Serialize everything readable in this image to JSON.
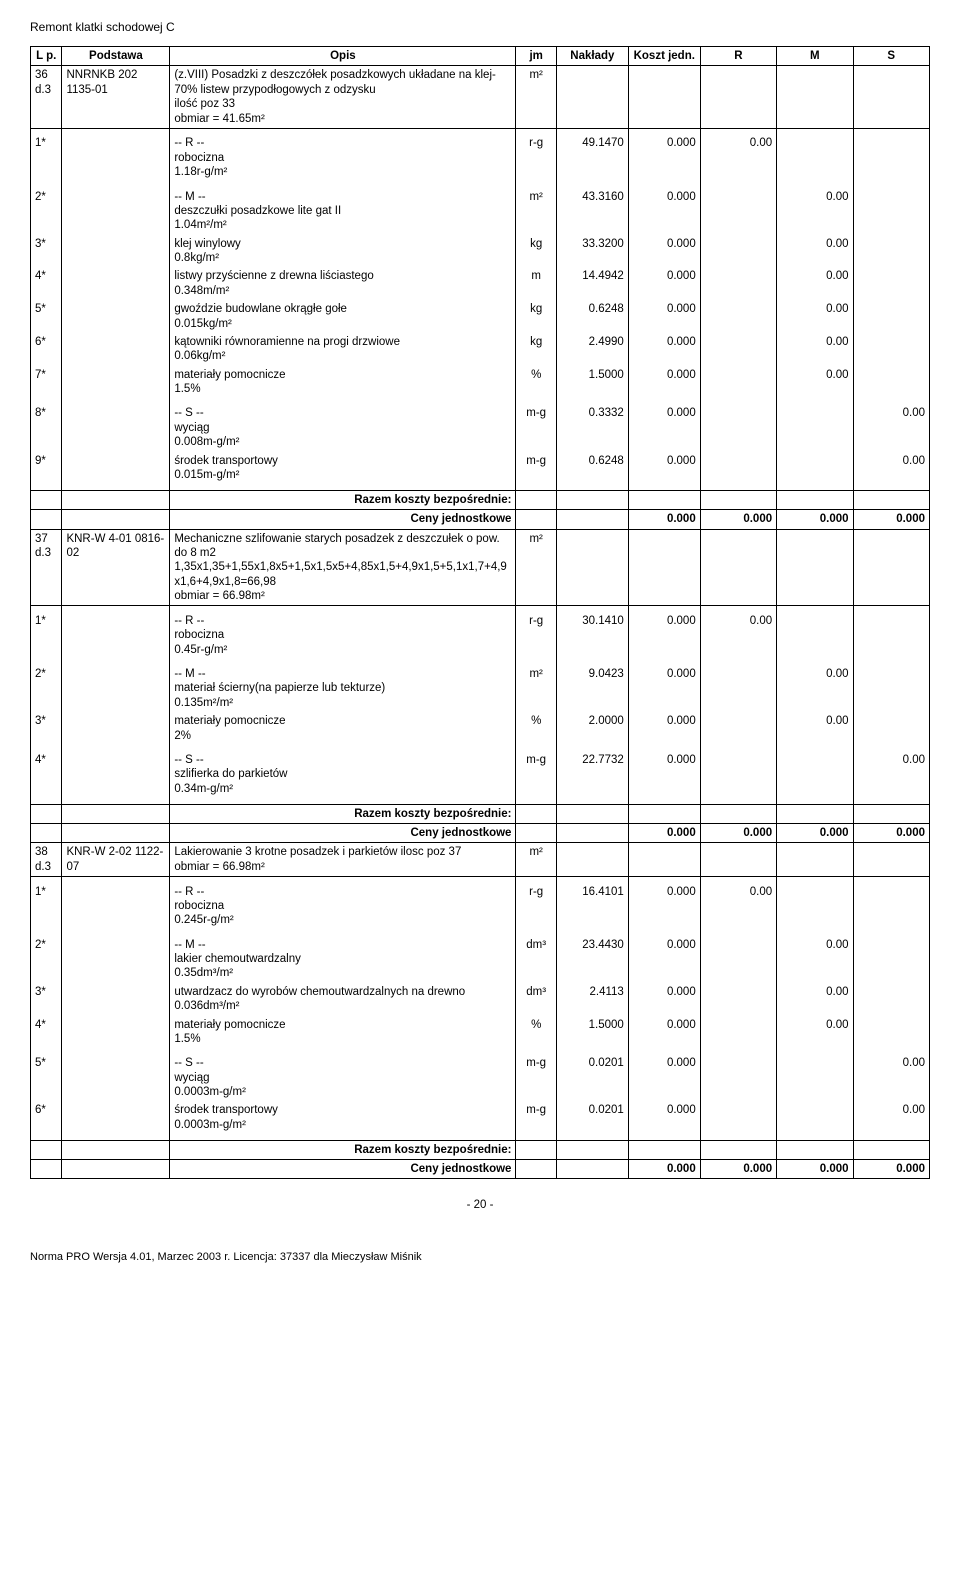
{
  "title": "Remont klatki schodowej C",
  "header": {
    "lp": "L p.",
    "podstawa": "Podstawa",
    "opis": "Opis",
    "jm": "jm",
    "naklady": "Nakłady",
    "koszt": "Koszt jedn.",
    "r": "R",
    "m": "M",
    "s": "S"
  },
  "labels": {
    "rhead": "-- R --",
    "mhead": "-- M --",
    "shead": "-- S --",
    "razem": "Razem koszty bezpośrednie:",
    "ceny": "Ceny jednostkowe"
  },
  "items": [
    {
      "lp": "36 d.3",
      "podstawa": "NNRNKB 202 1135-01",
      "opis": "(z.VIII) Posadzki z deszczółek posadzkowych układane na klej- 70% listew przypodłogowych z odzysku\nilość poz 33\nobmiar = 41.65m²",
      "jm": "m²",
      "r": [
        {
          "n": "1*",
          "opis": "robocizna",
          "sub": "1.18r-g/m²",
          "jm": "r-g",
          "nak": "49.1470",
          "koszt": "0.000",
          "r": "0.00"
        }
      ],
      "m": [
        {
          "n": "2*",
          "opis": "deszczułki posadzkowe lite gat II",
          "sub": "1.04m²/m²",
          "jm": "m²",
          "nak": "43.3160",
          "koszt": "0.000",
          "m": "0.00"
        },
        {
          "n": "3*",
          "opis": "klej winylowy",
          "sub": "0.8kg/m²",
          "jm": "kg",
          "nak": "33.3200",
          "koszt": "0.000",
          "m": "0.00"
        },
        {
          "n": "4*",
          "opis": "listwy przyścienne z drewna liściastego",
          "sub": "0.348m/m²",
          "jm": "m",
          "nak": "14.4942",
          "koszt": "0.000",
          "m": "0.00"
        },
        {
          "n": "5*",
          "opis": "gwoździe budowlane okrągłe gołe",
          "sub": "0.015kg/m²",
          "jm": "kg",
          "nak": "0.6248",
          "koszt": "0.000",
          "m": "0.00"
        },
        {
          "n": "6*",
          "opis": "kątowniki równoramienne na progi drzwiowe",
          "sub": "0.06kg/m²",
          "jm": "kg",
          "nak": "2.4990",
          "koszt": "0.000",
          "m": "0.00"
        },
        {
          "n": "7*",
          "opis": "materiały pomocnicze",
          "sub": "1.5%",
          "jm": "%",
          "nak": "1.5000",
          "koszt": "0.000",
          "m": "0.00"
        }
      ],
      "s": [
        {
          "n": "8*",
          "opis": "wyciąg",
          "sub": "0.008m-g/m²",
          "jm": "m-g",
          "nak": "0.3332",
          "koszt": "0.000",
          "s": "0.00"
        },
        {
          "n": "9*",
          "opis": "środek transportowy",
          "sub": "0.015m-g/m²",
          "jm": "m-g",
          "nak": "0.6248",
          "koszt": "0.000",
          "s": "0.00"
        }
      ],
      "ceny": {
        "koszt": "0.000",
        "r": "0.000",
        "m": "0.000",
        "s": "0.000"
      }
    },
    {
      "lp": "37 d.3",
      "podstawa": "KNR-W 4-01 0816-02",
      "opis": "Mechaniczne szlifowanie starych posadzek z deszczułek o pow. do 8 m2\n1,35x1,35+1,55x1,8x5+1,5x1,5x5+4,85x1,5+4,9x1,5+5,1x1,7+4,9x1,6+4,9x1,8=66,98\nobmiar = 66.98m²",
      "jm": "m²",
      "r": [
        {
          "n": "1*",
          "opis": "robocizna",
          "sub": "0.45r-g/m²",
          "jm": "r-g",
          "nak": "30.1410",
          "koszt": "0.000",
          "r": "0.00"
        }
      ],
      "m": [
        {
          "n": "2*",
          "opis": "materiał ścierny(na papierze lub tekturze)",
          "sub": "0.135m²/m²",
          "jm": "m²",
          "nak": "9.0423",
          "koszt": "0.000",
          "m": "0.00"
        },
        {
          "n": "3*",
          "opis": "materiały pomocnicze",
          "sub": "2%",
          "jm": "%",
          "nak": "2.0000",
          "koszt": "0.000",
          "m": "0.00"
        }
      ],
      "s": [
        {
          "n": "4*",
          "opis": "szlifierka do parkietów",
          "sub": "0.34m-g/m²",
          "jm": "m-g",
          "nak": "22.7732",
          "koszt": "0.000",
          "s": "0.00"
        }
      ],
      "ceny": {
        "koszt": "0.000",
        "r": "0.000",
        "m": "0.000",
        "s": "0.000"
      }
    },
    {
      "lp": "38 d.3",
      "podstawa": "KNR-W 2-02 1122-07",
      "opis": "Lakierowanie  3 krotne posadzek i parkietów ilosc poz 37\nobmiar = 66.98m²",
      "jm": "m²",
      "r": [
        {
          "n": "1*",
          "opis": "robocizna",
          "sub": "0.245r-g/m²",
          "jm": "r-g",
          "nak": "16.4101",
          "koszt": "0.000",
          "r": "0.00"
        }
      ],
      "m": [
        {
          "n": "2*",
          "opis": "lakier chemoutwardzalny",
          "sub": "0.35dm³/m²",
          "jm": "dm³",
          "nak": "23.4430",
          "koszt": "0.000",
          "m": "0.00"
        },
        {
          "n": "3*",
          "opis": "utwardzacz do wyrobów chemoutwardzalnych na drewno",
          "sub": "0.036dm³/m²",
          "jm": "dm³",
          "nak": "2.4113",
          "koszt": "0.000",
          "m": "0.00"
        },
        {
          "n": "4*",
          "opis": "materiały pomocnicze",
          "sub": "1.5%",
          "jm": "%",
          "nak": "1.5000",
          "koszt": "0.000",
          "m": "0.00"
        }
      ],
      "s": [
        {
          "n": "5*",
          "opis": "wyciąg",
          "sub": "0.0003m-g/m²",
          "jm": "m-g",
          "nak": "0.0201",
          "koszt": "0.000",
          "s": "0.00"
        },
        {
          "n": "6*",
          "opis": "środek transportowy",
          "sub": "0.0003m-g/m²",
          "jm": "m-g",
          "nak": "0.0201",
          "koszt": "0.000",
          "s": "0.00"
        }
      ],
      "ceny": {
        "koszt": "0.000",
        "r": "0.000",
        "m": "0.000",
        "s": "0.000"
      }
    }
  ],
  "page": "- 20 -",
  "footer": "Norma PRO Wersja 4.01, Marzec 2003 r. Licencja: 37337 dla Mieczysław Miśnik"
}
